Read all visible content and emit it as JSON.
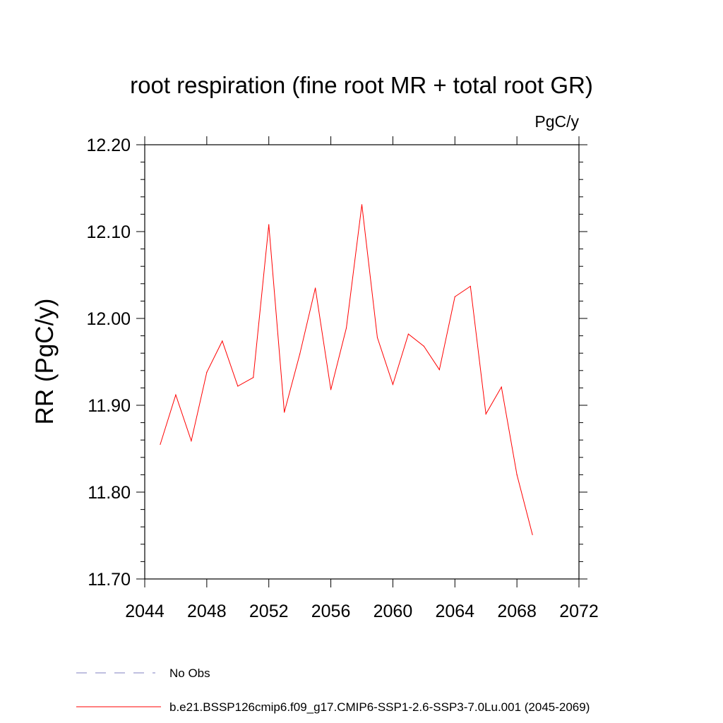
{
  "chart_data": {
    "type": "line",
    "title": "root respiration (fine root MR + total root GR)",
    "units_label": "PgC/y",
    "ylabel": "RR  (PgC/y)",
    "xlabel": "",
    "xlim": [
      2044,
      2072
    ],
    "ylim": [
      11.7,
      12.2
    ],
    "x_ticks": [
      2044,
      2048,
      2052,
      2056,
      2060,
      2064,
      2068,
      2072
    ],
    "x_tick_labels": [
      "2044",
      "2048",
      "2052",
      "2056",
      "2060",
      "2064",
      "2068",
      "2072"
    ],
    "y_ticks": [
      11.7,
      11.8,
      11.9,
      12.0,
      12.1,
      12.2
    ],
    "y_tick_labels": [
      "11.70",
      "11.80",
      "11.90",
      "12.00",
      "12.10",
      "12.20"
    ],
    "grid": false,
    "legend_position": "bottom-left",
    "series": [
      {
        "name": "b.e21.BSSP126cmip6.f09_g17.CMIP6-SSP1-2.6-SSP3-7.0Lu.001 (2045-2069)",
        "color": "#ff0000",
        "x": [
          2045,
          2046,
          2047,
          2048,
          2049,
          2050,
          2051,
          2052,
          2053,
          2054,
          2055,
          2056,
          2057,
          2058,
          2059,
          2060,
          2061,
          2062,
          2063,
          2064,
          2065,
          2066,
          2067,
          2068,
          2069
        ],
        "y": [
          11.855,
          11.912,
          11.859,
          11.938,
          11.974,
          11.922,
          11.932,
          12.108,
          11.892,
          11.959,
          12.035,
          11.918,
          11.989,
          12.131,
          11.978,
          11.924,
          11.982,
          11.968,
          11.941,
          12.025,
          12.037,
          11.89,
          11.921,
          11.82,
          11.751
        ]
      }
    ],
    "legend": [
      {
        "label": "No Obs",
        "style": "dashed",
        "color": "#8080c0"
      },
      {
        "label": "b.e21.BSSP126cmip6.f09_g17.CMIP6-SSP1-2.6-SSP3-7.0Lu.001 (2045-2069)",
        "style": "solid",
        "color": "#ff0000"
      }
    ]
  }
}
